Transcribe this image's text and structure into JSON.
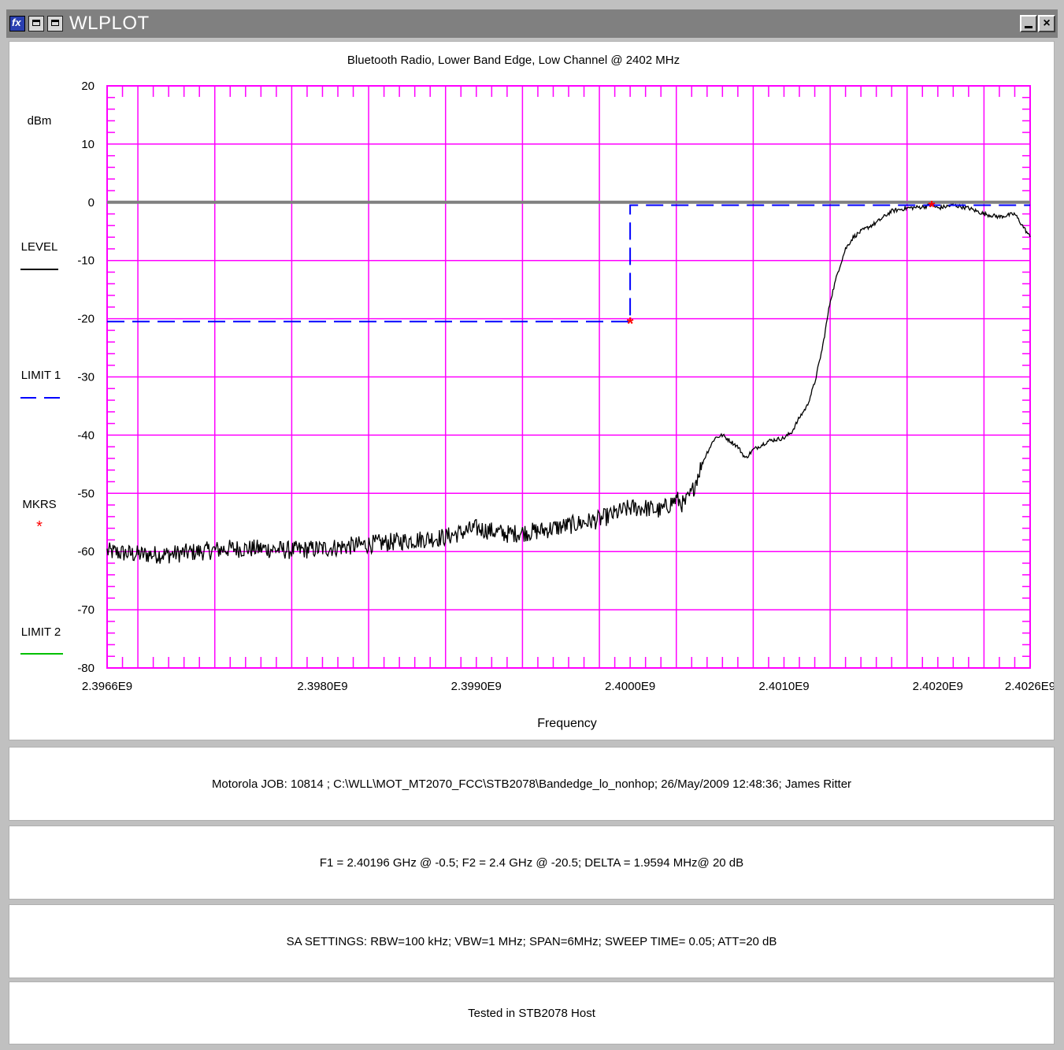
{
  "window": {
    "title": "WLPLOT",
    "app_icon": "fx-icon",
    "minimize_label": "",
    "close_label": "×"
  },
  "chart_data": {
    "type": "line",
    "title": "Bluetooth Radio, Lower Band Edge, Low Channel @ 2402 MHz",
    "xlabel": "Frequency",
    "ylabel": "dBm",
    "xlim": [
      2396600000,
      2402600000
    ],
    "ylim": [
      -80,
      20
    ],
    "grid": true,
    "grid_color": "#ff00ff",
    "x_ticks": [
      "2.3966E9",
      "2.3980E9",
      "2.3990E9",
      "2.4000E9",
      "2.4010E9",
      "2.4020E9",
      "2.4026E9"
    ],
    "x_tick_values": [
      2396600000,
      2398000000,
      2399000000,
      2400000000,
      2401000000,
      2402000000,
      2402600000
    ],
    "y_ticks": [
      "20",
      "10",
      "0",
      "-10",
      "-20",
      "-30",
      "-40",
      "-50",
      "-60",
      "-70",
      "-80"
    ],
    "y_tick_values": [
      20,
      10,
      0,
      -10,
      -20,
      -30,
      -40,
      -50,
      -60,
      -70,
      -80
    ],
    "legend": [
      {
        "name": "LEVEL",
        "color": "#000000",
        "style": "solid"
      },
      {
        "name": "LIMIT 1",
        "color": "#0000ff",
        "style": "dashed"
      },
      {
        "name": "MKRS",
        "color": "#ff0000",
        "style": "marker"
      },
      {
        "name": "LIMIT 2",
        "color": "#00c000",
        "style": "solid"
      }
    ],
    "legend_placement": "left",
    "series": [
      {
        "name": "LEVEL",
        "color": "#000000",
        "x": [
          2396600000,
          2396800000,
          2397000000,
          2397200000,
          2397400000,
          2397600000,
          2397800000,
          2398000000,
          2398200000,
          2398400000,
          2398600000,
          2398800000,
          2399000000,
          2399200000,
          2399400000,
          2399600000,
          2399800000,
          2400000000,
          2400100000,
          2400200000,
          2400300000,
          2400350000,
          2400400000,
          2400450000,
          2400500000,
          2400550000,
          2400600000,
          2400650000,
          2400700000,
          2400750000,
          2400800000,
          2400900000,
          2401000000,
          2401050000,
          2401100000,
          2401150000,
          2401200000,
          2401250000,
          2401300000,
          2401350000,
          2401400000,
          2401450000,
          2401500000,
          2401600000,
          2401700000,
          2401800000,
          2401900000,
          2401960000,
          2402000000,
          2402100000,
          2402200000,
          2402300000,
          2402400000,
          2402500000,
          2402600000
        ],
        "y": [
          -60,
          -60.5,
          -60.5,
          -60,
          -59.5,
          -59.5,
          -59.8,
          -59.5,
          -59,
          -58.5,
          -58,
          -57.5,
          -56,
          -57,
          -56.5,
          -55.5,
          -54.5,
          -52.5,
          -52.5,
          -53,
          -51,
          -52,
          -50,
          -46,
          -43,
          -40.5,
          -40,
          -41,
          -42,
          -44,
          -42.5,
          -41,
          -40.5,
          -39.5,
          -37,
          -35,
          -31,
          -25,
          -17,
          -12,
          -8,
          -6,
          -5,
          -3.5,
          -1.5,
          -1,
          -0.8,
          -0.5,
          -1,
          -0.5,
          -1,
          -2,
          -2.5,
          -2,
          -6
        ]
      },
      {
        "name": "LIMIT 1",
        "color": "#0000ff",
        "x": [
          2396600000,
          2400000000,
          2400000000,
          2402600000
        ],
        "y": [
          -20.5,
          -20.5,
          -0.5,
          -0.5
        ]
      }
    ],
    "hlines": [
      {
        "y": 0,
        "color": "#808080"
      }
    ],
    "markers": [
      {
        "x": 2401960000,
        "y": -0.5,
        "color": "#ff0000"
      },
      {
        "x": 2400000000,
        "y": -20.5,
        "color": "#ff0000"
      }
    ]
  },
  "info": {
    "job": "Motorola  JOB: 10814   ;  C:\\WLL\\MOT_MT2070_FCC\\STB2078\\Bandedge_lo_nonhop;    26/May/2009 12:48:36; James Ritter",
    "markers": "F1 = 2.40196 GHz @ -0.5;   F2 = 2.4 GHz @ -20.5;   DELTA = 1.9594 MHz@ 20 dB",
    "sa_settings": "SA SETTINGS: RBW=100 kHz; VBW=1 MHz; SPAN=6MHz; SWEEP TIME= 0.05; ATT=20 dB",
    "tested": "Tested in STB2078 Host"
  }
}
